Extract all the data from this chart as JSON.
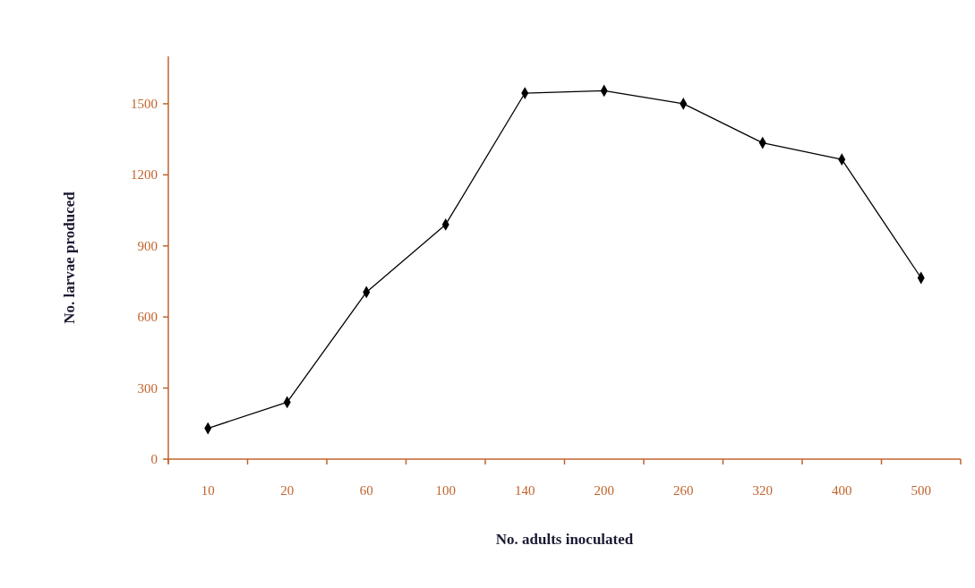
{
  "chart_data": {
    "type": "line",
    "xlabel": "No. adults inoculated",
    "ylabel": "No. larvae produced",
    "categories": [
      "10",
      "20",
      "60",
      "100",
      "140",
      "200",
      "260",
      "320",
      "400",
      "500"
    ],
    "series": [
      {
        "color": "#000000",
        "values": [
          130,
          240,
          705,
          990,
          1545,
          1555,
          1500,
          1335,
          1265,
          765
        ]
      }
    ],
    "ylim": [
      0,
      1700
    ],
    "yticks": [
      0,
      300,
      600,
      900,
      1200,
      1500
    ],
    "grid": false,
    "marker": "diamond",
    "line_style": "solid"
  }
}
